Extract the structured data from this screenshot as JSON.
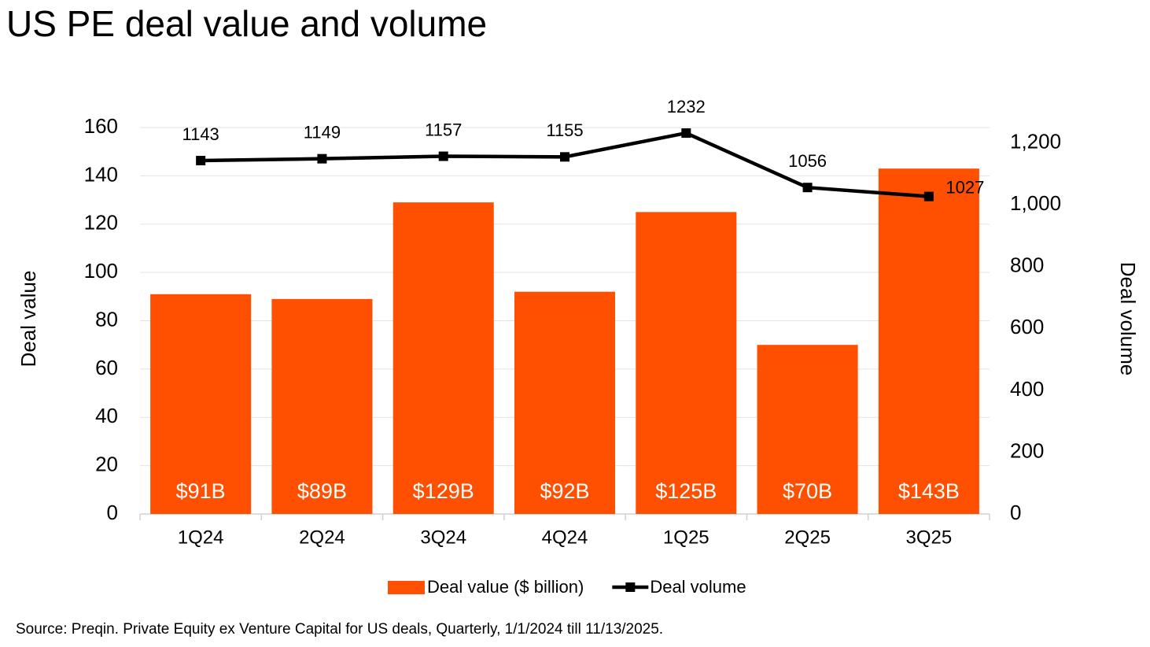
{
  "chart_data": {
    "type": "bar_line",
    "title": "US PE deal value and volume",
    "source": "Source: Preqin. Private Equity ex Venture Capital for US deals, Quarterly, 1/1/2024 till 11/13/2025.",
    "y_label": "Deal value",
    "y2_label": "Deal volume",
    "categories": [
      "1Q24",
      "2Q24",
      "3Q24",
      "4Q24",
      "1Q25",
      "2Q25",
      "3Q25"
    ],
    "series": [
      {
        "name": "Deal value ($ billion)",
        "type": "bar",
        "color": "#fe5000",
        "values": [
          91,
          89,
          129,
          92,
          125,
          70,
          143
        ],
        "value_labels": [
          "$91B",
          "$89B",
          "$129B",
          "$92B",
          "$125B",
          "$70B",
          "$143B"
        ]
      },
      {
        "name": "Deal volume",
        "type": "line",
        "axis": "y2",
        "color": "#000000",
        "values": [
          1143,
          1149,
          1157,
          1155,
          1232,
          1056,
          1027
        ]
      }
    ],
    "ylim": [
      0,
      160
    ],
    "yticks": [
      0,
      20,
      40,
      60,
      80,
      100,
      120,
      140,
      160
    ],
    "y2lim": [
      0,
      1250
    ],
    "y2ticks": [
      0,
      200,
      400,
      600,
      800,
      {
        "value": 1000,
        "label": "1,000"
      },
      {
        "value": 1200,
        "label": "1,200"
      }
    ],
    "grid": true
  }
}
